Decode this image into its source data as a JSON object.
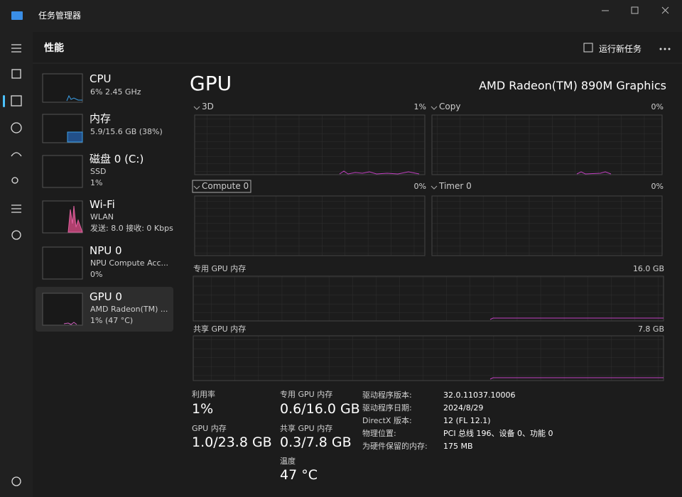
{
  "window": {
    "title": "任务管理器"
  },
  "header": {
    "title": "性能",
    "run_task": "运行新任务"
  },
  "sidebar": [
    {
      "name": "CPU",
      "line1": "6% 2.45 GHz"
    },
    {
      "name": "内存",
      "line1": "5.9/15.6 GB (38%)"
    },
    {
      "name": "磁盘 0 (C:)",
      "line1": "SSD",
      "line2": "1%"
    },
    {
      "name": "Wi-Fi",
      "line1": "WLAN",
      "line2": "发送: 8.0 接收: 0 Kbps"
    },
    {
      "name": "NPU 0",
      "line1": "NPU Compute Acc...",
      "line2": "0%"
    },
    {
      "name": "GPU 0",
      "line1": "AMD Radeon(TM) ...",
      "line2": "1% (47 °C)"
    }
  ],
  "main": {
    "title": "GPU",
    "device": "AMD Radeon(TM) 890M Graphics",
    "engines": [
      {
        "name": "3D",
        "value": "1%"
      },
      {
        "name": "Copy",
        "value": "0%"
      },
      {
        "name": "Compute 0",
        "value": "0%"
      },
      {
        "name": "Timer 0",
        "value": "0%"
      }
    ],
    "memory_graphs": [
      {
        "name": "专用 GPU 内存",
        "max": "16.0 GB"
      },
      {
        "name": "共享 GPU 内存",
        "max": "7.8 GB"
      }
    ],
    "stats": [
      {
        "label": "利用率",
        "value": "1%"
      },
      {
        "label": "专用 GPU 内存",
        "value": "0.6/16.0 GB"
      },
      {
        "label": "GPU 内存",
        "value": "1.0/23.8 GB"
      },
      {
        "label": "共享 GPU 内存",
        "value": "0.3/7.8 GB"
      },
      {
        "label": "温度",
        "value": "47 °C"
      }
    ],
    "details": [
      {
        "label": "驱动程序版本:",
        "value": "32.0.11037.10006"
      },
      {
        "label": "驱动程序日期:",
        "value": "2024/8/29"
      },
      {
        "label": "DirectX 版本:",
        "value": "12 (FL 12.1)"
      },
      {
        "label": "物理位置:",
        "value": "PCI 总线 196、设备 0、功能 0"
      },
      {
        "label": "为硬件保留的内存:",
        "value": "175 MB"
      }
    ]
  }
}
